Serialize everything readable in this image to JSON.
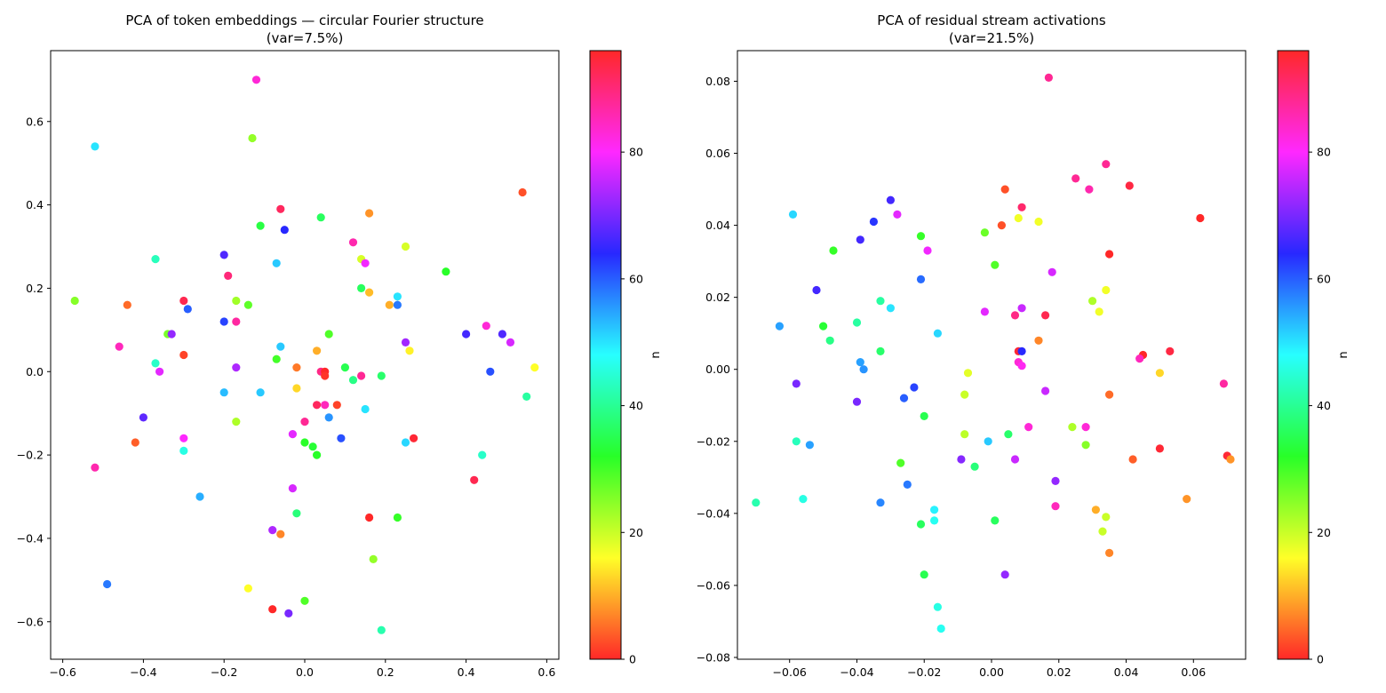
{
  "chart_data": [
    {
      "type": "scatter",
      "title": "PCA of token embeddings — circular Fourier structure",
      "subtitle": "(var=7.5%)",
      "xlabel": "",
      "ylabel": "",
      "xlim": [
        -0.63,
        0.63
      ],
      "ylim": [
        -0.69,
        0.77
      ],
      "xticks": [
        "−0.6",
        "−0.4",
        "−0.2",
        "0.0",
        "0.2",
        "0.4",
        "0.6"
      ],
      "yticks": [
        "−0.6",
        "−0.4",
        "−0.2",
        "0.0",
        "0.2",
        "0.4",
        "0.6"
      ],
      "grid": false,
      "colorbar": {
        "label": "n",
        "range": [
          0,
          96
        ],
        "ticks": [
          "0",
          "20",
          "40",
          "60",
          "80"
        ],
        "colormap": "hsv"
      },
      "points": [
        {
          "x": -0.52,
          "y": 0.54,
          "n": 50
        },
        {
          "x": -0.12,
          "y": 0.7,
          "n": 83
        },
        {
          "x": -0.13,
          "y": 0.56,
          "n": 24
        },
        {
          "x": 0.54,
          "y": 0.43,
          "n": 3
        },
        {
          "x": -0.06,
          "y": 0.39,
          "n": 92
        },
        {
          "x": 0.16,
          "y": 0.38,
          "n": 8
        },
        {
          "x": 0.04,
          "y": 0.37,
          "n": 36
        },
        {
          "x": -0.11,
          "y": 0.35,
          "n": 34
        },
        {
          "x": -0.05,
          "y": 0.34,
          "n": 64
        },
        {
          "x": 0.12,
          "y": 0.31,
          "n": 86
        },
        {
          "x": 0.25,
          "y": 0.3,
          "n": 19
        },
        {
          "x": 0.14,
          "y": 0.27,
          "n": 19
        },
        {
          "x": 0.15,
          "y": 0.26,
          "n": 79
        },
        {
          "x": -0.37,
          "y": 0.27,
          "n": 43
        },
        {
          "x": 0.35,
          "y": 0.24,
          "n": 32
        },
        {
          "x": -0.2,
          "y": 0.28,
          "n": 67
        },
        {
          "x": -0.07,
          "y": 0.26,
          "n": 52
        },
        {
          "x": -0.19,
          "y": 0.23,
          "n": 90
        },
        {
          "x": 0.14,
          "y": 0.2,
          "n": 36
        },
        {
          "x": 0.16,
          "y": 0.19,
          "n": 11
        },
        {
          "x": 0.23,
          "y": 0.18,
          "n": 50
        },
        {
          "x": -0.57,
          "y": 0.17,
          "n": 25
        },
        {
          "x": -0.44,
          "y": 0.16,
          "n": 5
        },
        {
          "x": -0.3,
          "y": 0.17,
          "n": 93
        },
        {
          "x": -0.29,
          "y": 0.15,
          "n": 60
        },
        {
          "x": -0.17,
          "y": 0.17,
          "n": 23
        },
        {
          "x": -0.14,
          "y": 0.16,
          "n": 28
        },
        {
          "x": 0.21,
          "y": 0.16,
          "n": 10
        },
        {
          "x": 0.23,
          "y": 0.16,
          "n": 58
        },
        {
          "x": -0.2,
          "y": 0.12,
          "n": 62
        },
        {
          "x": -0.17,
          "y": 0.12,
          "n": 87
        },
        {
          "x": -0.34,
          "y": 0.09,
          "n": 26
        },
        {
          "x": -0.33,
          "y": 0.09,
          "n": 72
        },
        {
          "x": 0.06,
          "y": 0.09,
          "n": 29
        },
        {
          "x": -0.46,
          "y": 0.06,
          "n": 85
        },
        {
          "x": -0.06,
          "y": 0.06,
          "n": 52
        },
        {
          "x": 0.03,
          "y": 0.05,
          "n": 10
        },
        {
          "x": -0.3,
          "y": 0.04,
          "n": 2
        },
        {
          "x": -0.07,
          "y": 0.03,
          "n": 30
        },
        {
          "x": 0.4,
          "y": 0.09,
          "n": 66
        },
        {
          "x": 0.45,
          "y": 0.11,
          "n": 83
        },
        {
          "x": 0.49,
          "y": 0.09,
          "n": 67
        },
        {
          "x": 0.51,
          "y": 0.07,
          "n": 77
        },
        {
          "x": 0.25,
          "y": 0.07,
          "n": 73
        },
        {
          "x": 0.26,
          "y": 0.05,
          "n": 15
        },
        {
          "x": 0.57,
          "y": 0.01,
          "n": 16
        },
        {
          "x": -0.37,
          "y": 0.02,
          "n": 44
        },
        {
          "x": -0.36,
          "y": 0.0,
          "n": 78
        },
        {
          "x": -0.17,
          "y": 0.01,
          "n": 74
        },
        {
          "x": -0.02,
          "y": 0.01,
          "n": 6
        },
        {
          "x": 0.04,
          "y": 0.0,
          "n": 89
        },
        {
          "x": 0.05,
          "y": 0.0,
          "n": 96
        },
        {
          "x": 0.05,
          "y": -0.01,
          "n": 1
        },
        {
          "x": 0.1,
          "y": 0.01,
          "n": 35
        },
        {
          "x": 0.12,
          "y": -0.02,
          "n": 39
        },
        {
          "x": 0.14,
          "y": -0.01,
          "n": 88
        },
        {
          "x": 0.19,
          "y": -0.01,
          "n": 37
        },
        {
          "x": 0.46,
          "y": 0.0,
          "n": 61
        },
        {
          "x": 0.55,
          "y": -0.06,
          "n": 41
        },
        {
          "x": -0.2,
          "y": -0.05,
          "n": 53
        },
        {
          "x": -0.11,
          "y": -0.05,
          "n": 52
        },
        {
          "x": -0.02,
          "y": -0.04,
          "n": 13
        },
        {
          "x": 0.05,
          "y": -0.08,
          "n": 85
        },
        {
          "x": 0.03,
          "y": -0.08,
          "n": 92
        },
        {
          "x": 0.08,
          "y": -0.08,
          "n": 2
        },
        {
          "x": 0.15,
          "y": -0.09,
          "n": 50
        },
        {
          "x": -0.4,
          "y": -0.11,
          "n": 68
        },
        {
          "x": -0.17,
          "y": -0.12,
          "n": 22
        },
        {
          "x": 0.0,
          "y": -0.12,
          "n": 88
        },
        {
          "x": 0.06,
          "y": -0.11,
          "n": 56
        },
        {
          "x": -0.03,
          "y": -0.15,
          "n": 78
        },
        {
          "x": 0.09,
          "y": -0.16,
          "n": 61
        },
        {
          "x": -0.42,
          "y": -0.17,
          "n": 4
        },
        {
          "x": -0.3,
          "y": -0.16,
          "n": 80
        },
        {
          "x": 0.0,
          "y": -0.17,
          "n": 32
        },
        {
          "x": 0.02,
          "y": -0.18,
          "n": 33
        },
        {
          "x": 0.03,
          "y": -0.2,
          "n": 32
        },
        {
          "x": -0.3,
          "y": -0.19,
          "n": 46
        },
        {
          "x": 0.27,
          "y": -0.16,
          "n": 95
        },
        {
          "x": 0.25,
          "y": -0.17,
          "n": 51
        },
        {
          "x": 0.44,
          "y": -0.2,
          "n": 44
        },
        {
          "x": -0.52,
          "y": -0.23,
          "n": 86
        },
        {
          "x": 0.42,
          "y": -0.26,
          "n": 93
        },
        {
          "x": -0.26,
          "y": -0.3,
          "n": 54
        },
        {
          "x": -0.03,
          "y": -0.28,
          "n": 77
        },
        {
          "x": -0.02,
          "y": -0.34,
          "n": 38
        },
        {
          "x": 0.16,
          "y": -0.35,
          "n": 96
        },
        {
          "x": 0.23,
          "y": -0.35,
          "n": 31
        },
        {
          "x": -0.08,
          "y": -0.38,
          "n": 74
        },
        {
          "x": -0.06,
          "y": -0.39,
          "n": 7
        },
        {
          "x": 0.17,
          "y": -0.45,
          "n": 24
        },
        {
          "x": -0.49,
          "y": -0.51,
          "n": 58
        },
        {
          "x": -0.14,
          "y": -0.52,
          "n": 16
        },
        {
          "x": 0.0,
          "y": -0.55,
          "n": 29
        },
        {
          "x": -0.08,
          "y": -0.57,
          "n": 96
        },
        {
          "x": -0.04,
          "y": -0.58,
          "n": 70
        },
        {
          "x": 0.19,
          "y": -0.62,
          "n": 42
        }
      ]
    },
    {
      "type": "scatter",
      "title": "PCA of residual stream activations",
      "subtitle": "(var=21.5%)",
      "xlabel": "",
      "ylabel": "",
      "xlim": [
        -0.0755,
        0.0755
      ],
      "ylim": [
        -0.0805,
        0.0885
      ],
      "xticks": [
        "−0.06",
        "−0.04",
        "−0.02",
        "0.00",
        "0.02",
        "0.04",
        "0.06"
      ],
      "yticks": [
        "−0.08",
        "−0.06",
        "−0.04",
        "−0.02",
        "0.00",
        "0.02",
        "0.04",
        "0.06",
        "0.08"
      ],
      "grid": false,
      "colorbar": {
        "label": "n",
        "range": [
          0,
          96
        ],
        "ticks": [
          "0",
          "20",
          "40",
          "60",
          "80"
        ],
        "colormap": "hsv"
      },
      "points": [
        {
          "x": 0.017,
          "y": 0.081,
          "n": 88
        },
        {
          "x": 0.034,
          "y": 0.057,
          "n": 88
        },
        {
          "x": 0.025,
          "y": 0.053,
          "n": 88
        },
        {
          "x": 0.029,
          "y": 0.05,
          "n": 86
        },
        {
          "x": 0.041,
          "y": 0.051,
          "n": 94
        },
        {
          "x": 0.004,
          "y": 0.05,
          "n": 3
        },
        {
          "x": 0.009,
          "y": 0.045,
          "n": 91
        },
        {
          "x": -0.03,
          "y": 0.047,
          "n": 66
        },
        {
          "x": -0.028,
          "y": 0.043,
          "n": 78
        },
        {
          "x": -0.059,
          "y": 0.043,
          "n": 51
        },
        {
          "x": -0.035,
          "y": 0.041,
          "n": 63
        },
        {
          "x": 0.003,
          "y": 0.04,
          "n": 3
        },
        {
          "x": 0.008,
          "y": 0.042,
          "n": 17
        },
        {
          "x": 0.014,
          "y": 0.041,
          "n": 17
        },
        {
          "x": 0.062,
          "y": 0.042,
          "n": 96
        },
        {
          "x": -0.039,
          "y": 0.036,
          "n": 66
        },
        {
          "x": -0.047,
          "y": 0.033,
          "n": 31
        },
        {
          "x": -0.021,
          "y": 0.037,
          "n": 31
        },
        {
          "x": -0.002,
          "y": 0.038,
          "n": 27
        },
        {
          "x": -0.019,
          "y": 0.033,
          "n": 79
        },
        {
          "x": 0.001,
          "y": 0.029,
          "n": 29
        },
        {
          "x": 0.035,
          "y": 0.032,
          "n": 96
        },
        {
          "x": 0.018,
          "y": 0.027,
          "n": 77
        },
        {
          "x": -0.021,
          "y": 0.025,
          "n": 59
        },
        {
          "x": -0.052,
          "y": 0.022,
          "n": 66
        },
        {
          "x": 0.034,
          "y": 0.022,
          "n": 17
        },
        {
          "x": -0.033,
          "y": 0.019,
          "n": 41
        },
        {
          "x": -0.03,
          "y": 0.017,
          "n": 50
        },
        {
          "x": -0.002,
          "y": 0.016,
          "n": 78
        },
        {
          "x": 0.009,
          "y": 0.017,
          "n": 76
        },
        {
          "x": 0.007,
          "y": 0.015,
          "n": 89
        },
        {
          "x": 0.016,
          "y": 0.015,
          "n": 93
        },
        {
          "x": 0.03,
          "y": 0.019,
          "n": 22
        },
        {
          "x": 0.032,
          "y": 0.016,
          "n": 17
        },
        {
          "x": -0.063,
          "y": 0.012,
          "n": 55
        },
        {
          "x": -0.05,
          "y": 0.012,
          "n": 33
        },
        {
          "x": -0.04,
          "y": 0.013,
          "n": 41
        },
        {
          "x": -0.048,
          "y": 0.008,
          "n": 39
        },
        {
          "x": -0.016,
          "y": 0.01,
          "n": 51
        },
        {
          "x": -0.033,
          "y": 0.005,
          "n": 37
        },
        {
          "x": 0.008,
          "y": 0.005,
          "n": 95
        },
        {
          "x": 0.009,
          "y": 0.005,
          "n": 64
        },
        {
          "x": 0.014,
          "y": 0.008,
          "n": 7
        },
        {
          "x": 0.053,
          "y": 0.005,
          "n": 94
        },
        {
          "x": 0.045,
          "y": 0.004,
          "n": 96
        },
        {
          "x": 0.044,
          "y": 0.003,
          "n": 85
        },
        {
          "x": -0.039,
          "y": 0.002,
          "n": 55
        },
        {
          "x": -0.038,
          "y": 0.0,
          "n": 56
        },
        {
          "x": 0.008,
          "y": 0.002,
          "n": 83
        },
        {
          "x": 0.009,
          "y": 0.001,
          "n": 81
        },
        {
          "x": -0.007,
          "y": -0.001,
          "n": 18
        },
        {
          "x": 0.05,
          "y": -0.001,
          "n": 13
        },
        {
          "x": -0.058,
          "y": -0.004,
          "n": 70
        },
        {
          "x": -0.023,
          "y": -0.005,
          "n": 62
        },
        {
          "x": -0.008,
          "y": -0.007,
          "n": 20
        },
        {
          "x": 0.016,
          "y": -0.006,
          "n": 76
        },
        {
          "x": 0.035,
          "y": -0.007,
          "n": 5
        },
        {
          "x": 0.069,
          "y": -0.004,
          "n": 87
        },
        {
          "x": -0.026,
          "y": -0.008,
          "n": 60
        },
        {
          "x": -0.04,
          "y": -0.009,
          "n": 70
        },
        {
          "x": -0.02,
          "y": -0.013,
          "n": 35
        },
        {
          "x": 0.011,
          "y": -0.016,
          "n": 83
        },
        {
          "x": 0.024,
          "y": -0.016,
          "n": 22
        },
        {
          "x": 0.028,
          "y": -0.016,
          "n": 83
        },
        {
          "x": -0.008,
          "y": -0.018,
          "n": 21
        },
        {
          "x": 0.005,
          "y": -0.018,
          "n": 37
        },
        {
          "x": -0.058,
          "y": -0.02,
          "n": 43
        },
        {
          "x": -0.054,
          "y": -0.021,
          "n": 55
        },
        {
          "x": -0.001,
          "y": -0.02,
          "n": 52
        },
        {
          "x": 0.028,
          "y": -0.021,
          "n": 25
        },
        {
          "x": 0.05,
          "y": -0.022,
          "n": 95
        },
        {
          "x": -0.027,
          "y": -0.026,
          "n": 29
        },
        {
          "x": -0.009,
          "y": -0.025,
          "n": 71
        },
        {
          "x": -0.005,
          "y": -0.027,
          "n": 38
        },
        {
          "x": 0.007,
          "y": -0.025,
          "n": 76
        },
        {
          "x": 0.042,
          "y": -0.025,
          "n": 4
        },
        {
          "x": 0.07,
          "y": -0.024,
          "n": 95
        },
        {
          "x": 0.071,
          "y": -0.025,
          "n": 8
        },
        {
          "x": -0.025,
          "y": -0.032,
          "n": 58
        },
        {
          "x": 0.019,
          "y": -0.031,
          "n": 72
        },
        {
          "x": -0.07,
          "y": -0.037,
          "n": 42
        },
        {
          "x": -0.056,
          "y": -0.036,
          "n": 46
        },
        {
          "x": -0.033,
          "y": -0.037,
          "n": 57
        },
        {
          "x": -0.017,
          "y": -0.039,
          "n": 49
        },
        {
          "x": 0.019,
          "y": -0.038,
          "n": 85
        },
        {
          "x": 0.031,
          "y": -0.039,
          "n": 10
        },
        {
          "x": 0.058,
          "y": -0.036,
          "n": 8
        },
        {
          "x": -0.017,
          "y": -0.042,
          "n": 47
        },
        {
          "x": -0.021,
          "y": -0.043,
          "n": 36
        },
        {
          "x": 0.001,
          "y": -0.042,
          "n": 36
        },
        {
          "x": 0.034,
          "y": -0.041,
          "n": 20
        },
        {
          "x": 0.033,
          "y": -0.045,
          "n": 20
        },
        {
          "x": 0.035,
          "y": -0.051,
          "n": 7
        },
        {
          "x": -0.02,
          "y": -0.057,
          "n": 35
        },
        {
          "x": 0.004,
          "y": -0.057,
          "n": 72
        },
        {
          "x": -0.016,
          "y": -0.066,
          "n": 46
        },
        {
          "x": -0.015,
          "y": -0.072,
          "n": 47
        }
      ]
    }
  ]
}
